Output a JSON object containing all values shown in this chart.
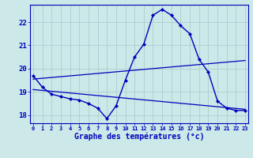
{
  "xlabel": "Graphe des températures (°c)",
  "hours": [
    0,
    1,
    2,
    3,
    4,
    5,
    6,
    7,
    8,
    9,
    10,
    11,
    12,
    13,
    14,
    15,
    16,
    17,
    18,
    19,
    20,
    21,
    22,
    23
  ],
  "temps": [
    19.7,
    19.2,
    18.9,
    18.8,
    18.7,
    18.65,
    18.5,
    18.3,
    17.85,
    18.4,
    19.5,
    20.5,
    21.05,
    22.3,
    22.55,
    22.3,
    21.85,
    21.5,
    20.4,
    19.85,
    18.6,
    18.3,
    18.2,
    18.2
  ],
  "trend1_x": [
    0,
    23
  ],
  "trend1_y": [
    19.55,
    20.35
  ],
  "trend2_x": [
    0,
    23
  ],
  "trend2_y": [
    19.1,
    18.25
  ],
  "bg_color": "#cce8e8",
  "grid_color": "#aacfcf",
  "line_color": "#0000bb",
  "ylim": [
    17.65,
    22.75
  ],
  "yticks": [
    18,
    19,
    20,
    21,
    22
  ],
  "xlim": [
    -0.3,
    23.3
  ]
}
